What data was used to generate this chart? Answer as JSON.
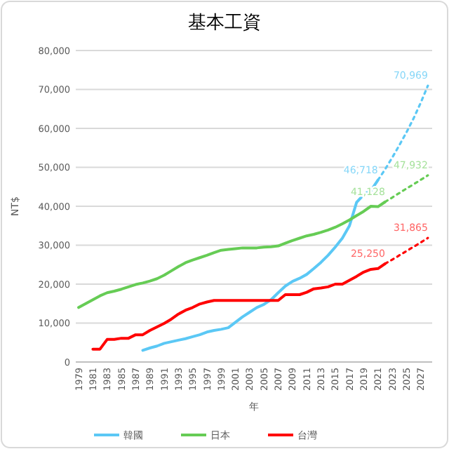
{
  "chart_data": {
    "type": "line",
    "title": "基本工資",
    "xlabel": "年",
    "ylabel": "NT$",
    "xlim": [
      1978.6,
      2028.6
    ],
    "xticks": [
      1979,
      1981,
      1983,
      1985,
      1987,
      1989,
      1991,
      1993,
      1995,
      1997,
      1999,
      2001,
      2003,
      2005,
      2007,
      2009,
      2011,
      2013,
      2015,
      2017,
      2019,
      2021,
      2023,
      2025,
      2027
    ],
    "ylim": [
      0,
      80000
    ],
    "yticks": [
      0,
      {
        "value": 10000,
        "label": "10,000"
      },
      {
        "value": 20000,
        "label": "20,000"
      },
      {
        "value": 30000,
        "label": "30,000"
      },
      {
        "value": 40000,
        "label": "40,000"
      },
      {
        "value": 50000,
        "label": "50,000"
      },
      {
        "value": 60000,
        "label": "60,000"
      },
      {
        "value": 70000,
        "label": "70,000"
      },
      {
        "value": 80000,
        "label": "80,000"
      }
    ],
    "grid": "y",
    "legend": "bottom",
    "line_style": "solid",
    "series": [
      {
        "name": "韓國",
        "color": "#5bc8f5",
        "x": [
          1988,
          1989,
          1990,
          1991,
          1992,
          1993,
          1994,
          1995,
          1996,
          1997,
          1998,
          1999,
          2000,
          2001,
          2002,
          2003,
          2004,
          2005,
          2006,
          2007,
          2008,
          2009,
          2010,
          2011,
          2012,
          2013,
          2014,
          2015,
          2016,
          2017,
          2018,
          2019,
          2020,
          2021
        ],
        "values": [
          3000,
          3600,
          4100,
          4800,
          5200,
          5600,
          6000,
          6500,
          7000,
          7700,
          8100,
          8400,
          8800,
          10200,
          11600,
          12800,
          14000,
          14800,
          16000,
          17800,
          19500,
          20700,
          21500,
          22500,
          24000,
          25600,
          27400,
          29500,
          31800,
          35000,
          41000,
          43000,
          44000,
          46718
        ]
      },
      {
        "name": "日本",
        "color": "#66cc55",
        "x": [
          1979,
          1980,
          1981,
          1982,
          1983,
          1984,
          1985,
          1986,
          1987,
          1988,
          1989,
          1990,
          1991,
          1992,
          1993,
          1994,
          1995,
          1996,
          1997,
          1998,
          1999,
          2000,
          2001,
          2002,
          2003,
          2004,
          2005,
          2006,
          2007,
          2008,
          2009,
          2010,
          2011,
          2012,
          2013,
          2014,
          2015,
          2016,
          2017,
          2018,
          2019,
          2020,
          2021,
          2022
        ],
        "values": [
          14000,
          15000,
          16000,
          17000,
          17800,
          18200,
          18700,
          19300,
          19900,
          20300,
          20800,
          21400,
          22300,
          23400,
          24500,
          25500,
          26200,
          26800,
          27400,
          28100,
          28700,
          28900,
          29100,
          29300,
          29300,
          29300,
          29500,
          29600,
          29800,
          30500,
          31200,
          31800,
          32400,
          32800,
          33300,
          33900,
          34600,
          35500,
          36500,
          37600,
          38700,
          40000,
          39900,
          41128
        ]
      },
      {
        "name": "台灣",
        "color": "#ff0000",
        "x": [
          1981,
          1982,
          1983,
          1984,
          1985,
          1986,
          1987,
          1988,
          1989,
          1990,
          1991,
          1992,
          1993,
          1994,
          1995,
          1996,
          1997,
          1998,
          1999,
          2000,
          2001,
          2002,
          2003,
          2004,
          2005,
          2006,
          2007,
          2008,
          2009,
          2010,
          2011,
          2012,
          2013,
          2014,
          2015,
          2016,
          2017,
          2018,
          2019,
          2020,
          2021,
          2022
        ],
        "values": [
          3300,
          3300,
          5800,
          5800,
          6100,
          6100,
          7000,
          7000,
          8100,
          9000,
          9900,
          11000,
          12300,
          13300,
          14000,
          14900,
          15400,
          15800,
          15800,
          15800,
          15800,
          15800,
          15800,
          15800,
          15800,
          15800,
          15800,
          17300,
          17300,
          17300,
          17900,
          18800,
          19000,
          19300,
          20000,
          20000,
          21000,
          22000,
          23100,
          23800,
          24000,
          25250
        ]
      },
      {
        "color": "#5bc8f5",
        "line_style": "dotted",
        "x": [
          2021,
          2022,
          2023,
          2024,
          2025,
          2026,
          2027,
          2028
        ],
        "values": [
          46718,
          49500,
          52500,
          55700,
          59000,
          62600,
          66600,
          70969
        ]
      },
      {
        "color": "#66cc55",
        "line_style": "dotted",
        "x": [
          2022,
          2023,
          2024,
          2025,
          2026,
          2027,
          2028
        ],
        "values": [
          41128,
          42250,
          43400,
          44550,
          45650,
          46800,
          47932
        ]
      },
      {
        "color": "#ff0000",
        "line_style": "dotted",
        "x": [
          2022,
          2023,
          2024,
          2025,
          2026,
          2027,
          2028
        ],
        "values": [
          25250,
          26300,
          27400,
          28500,
          29600,
          30700,
          31865
        ]
      }
    ],
    "annotations": [
      {
        "text": "70,969",
        "x": 2028,
        "y": 70969
      },
      {
        "text": "46,718",
        "x": 2021,
        "y": 46718
      },
      {
        "text": "47,932",
        "x": 2028,
        "y": 47932
      },
      {
        "text": "41,128",
        "x": 2022,
        "y": 41128
      },
      {
        "text": "31,865",
        "x": 2028,
        "y": 31865
      },
      {
        "text": "25,250",
        "x": 2022,
        "y": 25250
      }
    ]
  }
}
